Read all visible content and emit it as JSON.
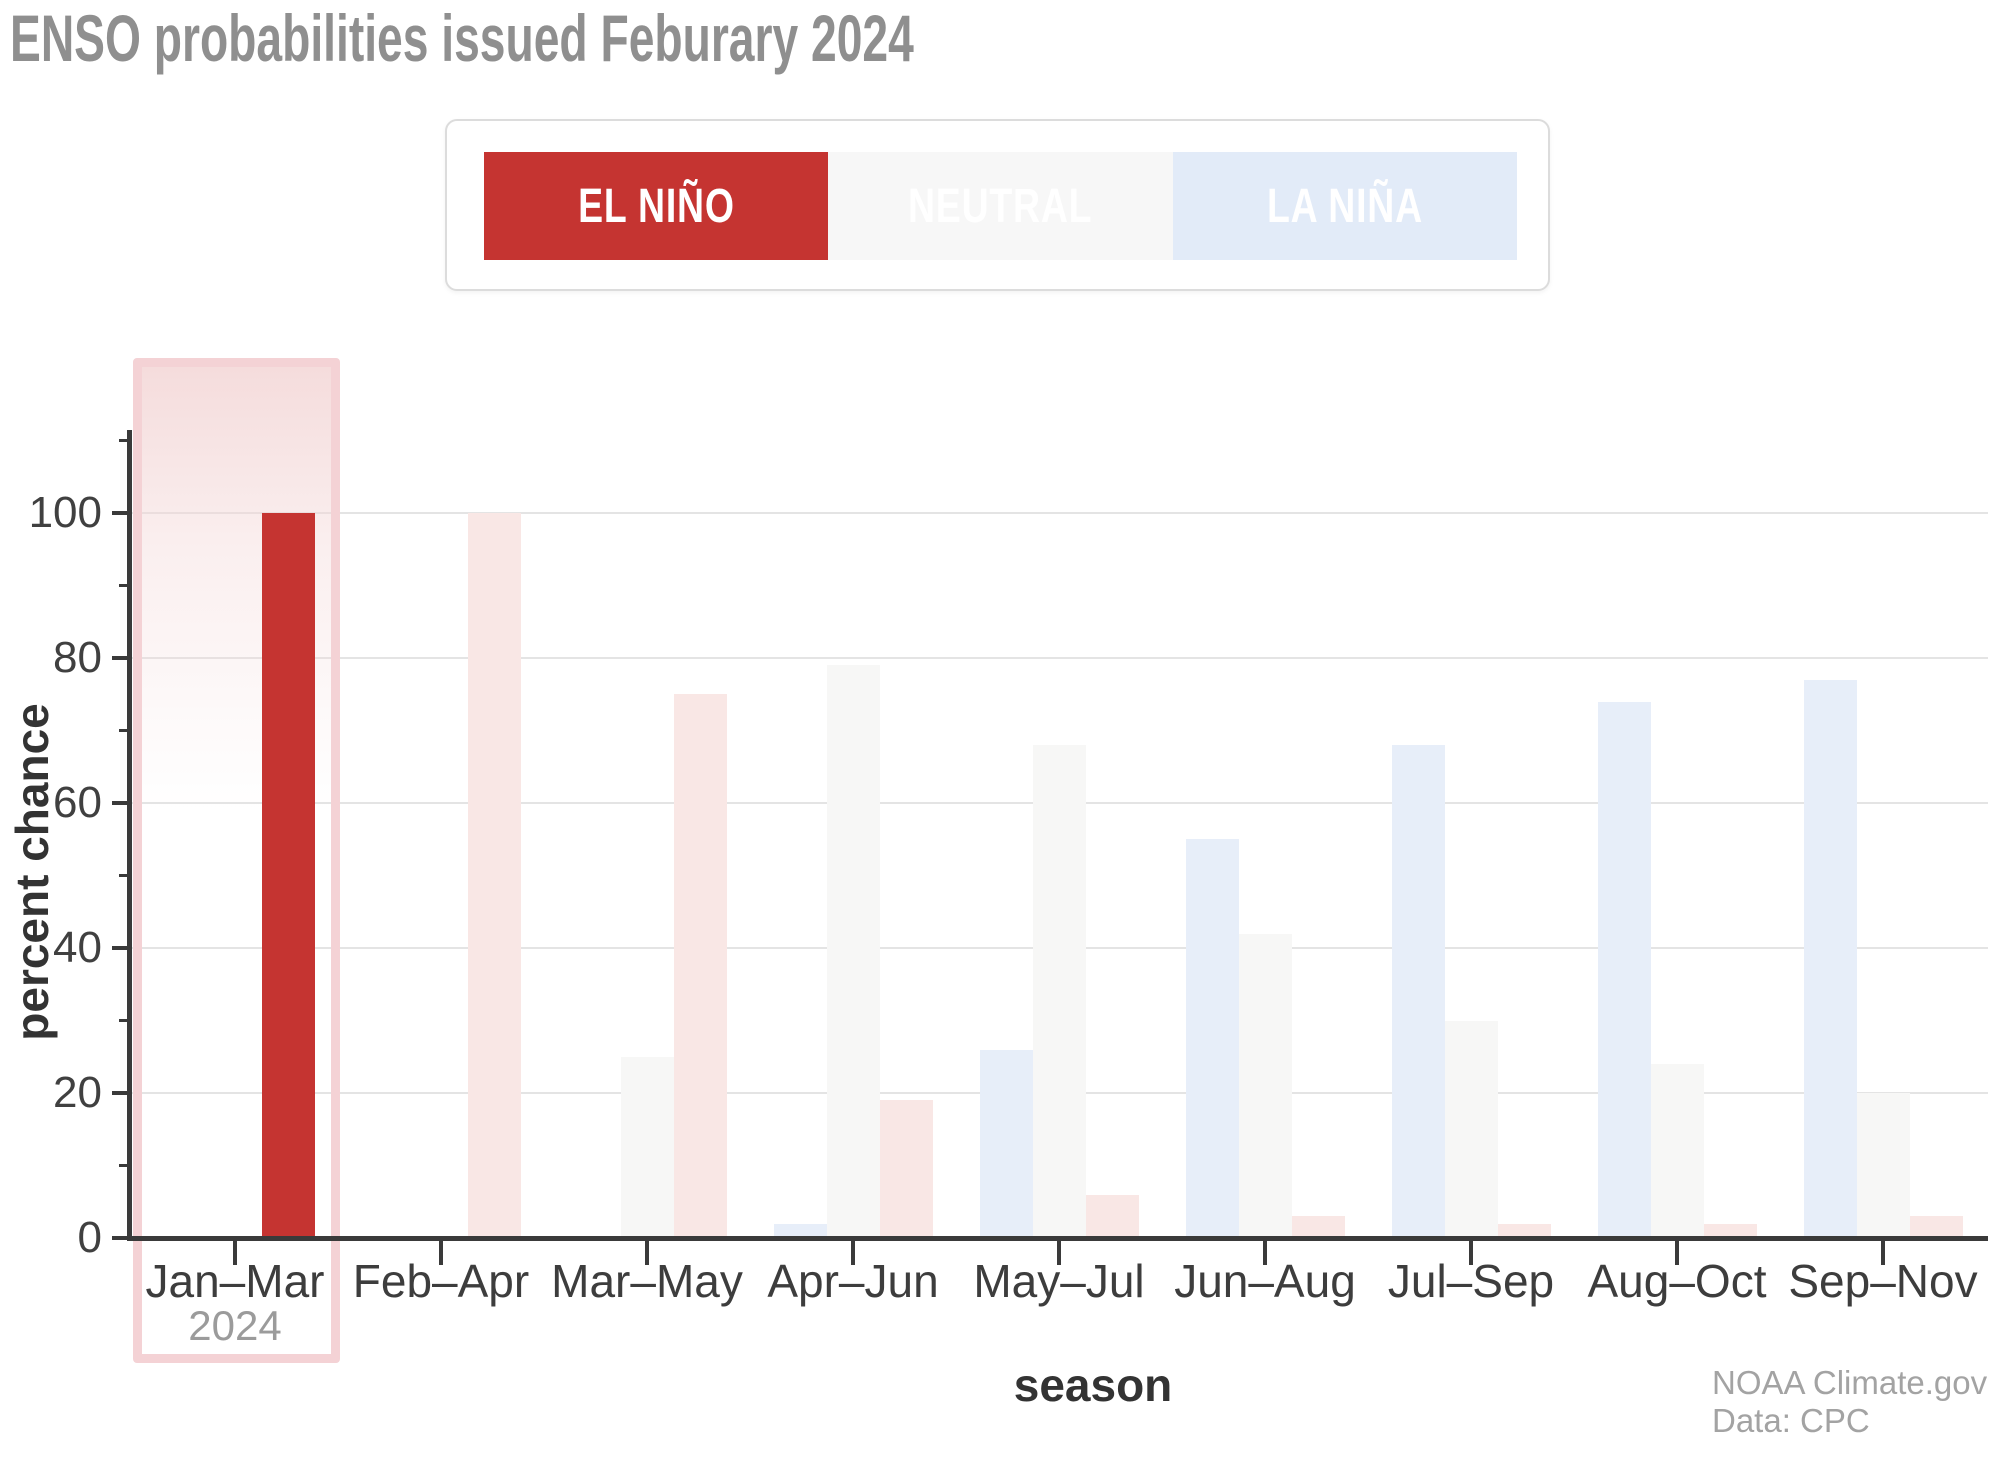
{
  "title": "ENSO probabilities issued Feburary 2024",
  "legend": {
    "items": [
      {
        "label": "EL NIÑO",
        "color": "#c53431",
        "text_color": "#ffffff"
      },
      {
        "label": "NEUTRAL",
        "color": "#f7f7f7",
        "text_color": "#ffffff"
      },
      {
        "label": "LA NIÑA",
        "color": "#e2ebf8",
        "text_color": "#ffffff"
      }
    ]
  },
  "chart_data": {
    "type": "bar",
    "title": "ENSO probabilities issued Feburary 2024",
    "xlabel": "season",
    "ylabel": "percent chance",
    "ylim": [
      0,
      110
    ],
    "y_major_ticks": [
      0,
      20,
      40,
      60,
      80,
      100
    ],
    "y_minor_ticks": [
      10,
      30,
      50,
      70,
      90,
      110
    ],
    "grid": "horizontal-major",
    "legend_position": "top",
    "categories": [
      "Jan–Mar",
      "Feb–Apr",
      "Mar–May",
      "Apr–Jun",
      "May–Jul",
      "Jun–Aug",
      "Jul–Sep",
      "Aug–Oct",
      "Sep–Nov"
    ],
    "category_sublabels": {
      "Jan–Mar": "2024"
    },
    "highlighted_category": "Jan–Mar",
    "series": [
      {
        "name": "La Niña",
        "color": "#e7eef9",
        "values": [
          0,
          0,
          0,
          2,
          26,
          55,
          68,
          74,
          77
        ]
      },
      {
        "name": "Neutral",
        "color": "#f7f7f6",
        "values": [
          0,
          0,
          25,
          79,
          68,
          42,
          30,
          24,
          20
        ]
      },
      {
        "name": "El Niño",
        "color": "#f9e7e5",
        "highlight_color": "#c53431",
        "values": [
          100,
          100,
          75,
          19,
          6,
          3,
          2,
          2,
          3
        ]
      }
    ]
  },
  "highlight": {
    "border_color": "#f4d2d5",
    "fill_top_color": "#f3d6d6"
  },
  "credit": {
    "lines": [
      "NOAA Climate.gov",
      "Data: CPC"
    ]
  }
}
